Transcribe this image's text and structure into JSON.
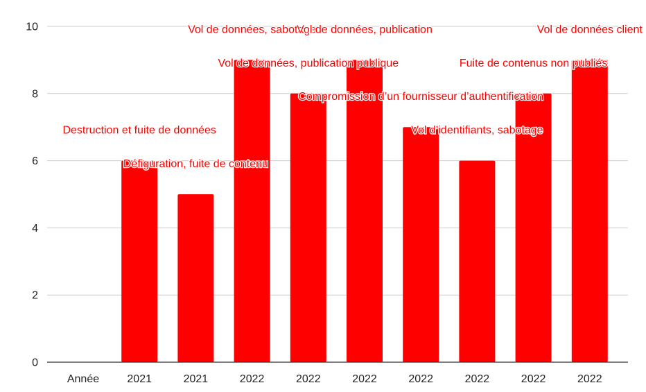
{
  "chart_data": {
    "type": "bar",
    "title": "",
    "xlabel": "",
    "ylabel": "",
    "ylim": [
      0,
      10
    ],
    "yticks": [
      0,
      2,
      4,
      6,
      8,
      10
    ],
    "grid": true,
    "legend": "none",
    "bar_color": "#ff0000",
    "categories": [
      "Année",
      "2021",
      "2021",
      "2022",
      "2022",
      "2022",
      "2022",
      "2022",
      "2022",
      "2022"
    ],
    "values": [
      null,
      6,
      5,
      9,
      8,
      9,
      7,
      6,
      8,
      9
    ],
    "labels": [
      "",
      "Destruction et fuite de données",
      "Défiguration, fuite de contenu",
      "Vol de données, sabotage",
      "Vol de données, publication publique",
      "Vol de données, publication",
      "Compromission d’un fournisseur d’authentification",
      "Vol d’identifiants, sabotage",
      "Fuite de contenus non publiés",
      "Vol de données client"
    ]
  }
}
